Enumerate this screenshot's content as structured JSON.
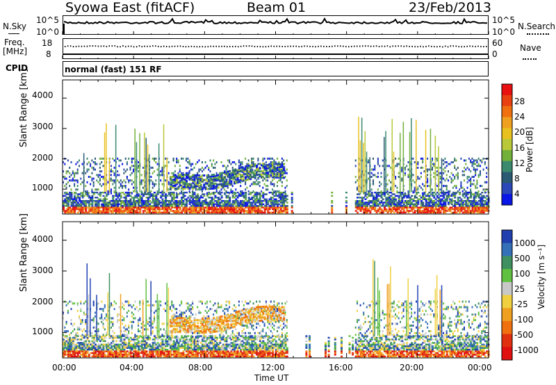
{
  "header": {
    "title": "Syowa East (fitACF)",
    "beam": "Beam 01",
    "date": "23/Feb/2013"
  },
  "sky_panel": {
    "left_label": "N.Sky",
    "right_label": "N.Search",
    "ticks": [
      "10^5",
      "10^0"
    ]
  },
  "freq_panel": {
    "left_label_1": "Freq.",
    "left_label_2": "[MHz]",
    "left_ticks": [
      "18",
      "8"
    ],
    "right_label": "Nave",
    "right_ticks": [
      "60",
      "0"
    ]
  },
  "cpid": {
    "label": "CPID",
    "value": "normal (fast) 151 RF"
  },
  "chart_data": [
    {
      "type": "heatmap",
      "name": "power",
      "ylabel": "Slant Range [km]",
      "ylim": [
        180,
        4600
      ],
      "yticks": [
        "1000",
        "2000",
        "3000",
        "4000"
      ],
      "colorbar_label": "Power [dB]",
      "colorbar_ticks": [
        "28",
        "24",
        "20",
        "16",
        "12",
        "8",
        "4"
      ],
      "colors": [
        "#0a16e6",
        "#2b47b8",
        "#2a5a73",
        "#3b8a6e",
        "#72b03a",
        "#b8c838",
        "#e8c020",
        "#f0a020",
        "#f07010",
        "#e84010",
        "#e81010"
      ]
    },
    {
      "type": "heatmap",
      "name": "velocity",
      "ylabel": "Slant Range [km]",
      "ylim": [
        180,
        4600
      ],
      "yticks": [
        "1000",
        "2000",
        "3000",
        "4000"
      ],
      "xlabel": "Time UT",
      "xticks": [
        "00:00",
        "04:00",
        "08:00",
        "12:00",
        "16:00",
        "20:00",
        "00:00"
      ],
      "colorbar_label": "Velocity [m s⁻¹]",
      "colorbar_ticks": [
        "1000",
        "500",
        "100",
        "25",
        "-25",
        "-100",
        "-500",
        "-1000"
      ],
      "colors": [
        "#2040b0",
        "#3470b8",
        "#3f9060",
        "#60c040",
        "#c8c8c8",
        "#f0d040",
        "#f0a020",
        "#f07010",
        "#e03010",
        "#e01010"
      ]
    }
  ]
}
